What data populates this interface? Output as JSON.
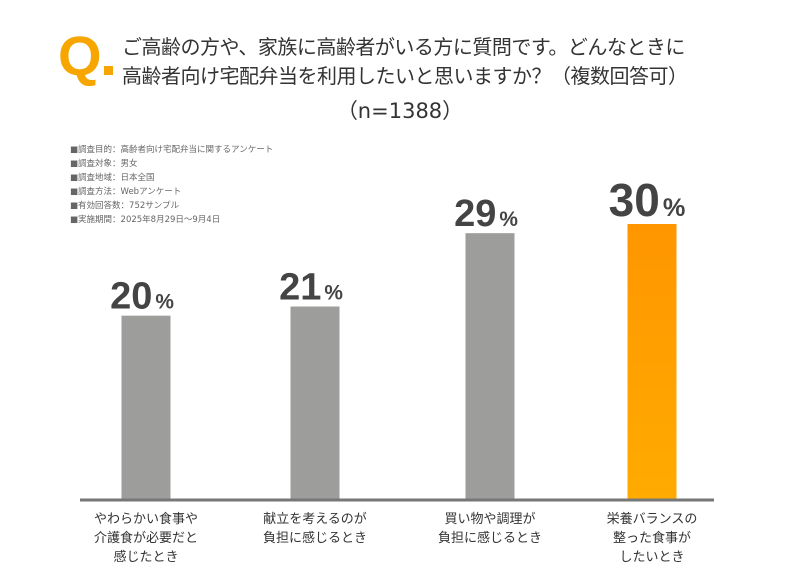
{
  "header": {
    "q_mark": "Q",
    "title_lines": [
      "ご高齢の方や、家族に高齢者がいる方に質問です。どんなときに",
      "高齢者向け宅配弁当を利用したいと思いますか？（複数回答可）"
    ],
    "sample": "（n=1388）"
  },
  "notes": [
    "■調査目的：高齢者向け宅配弁当に関するアンケート",
    "■調査対象：男女",
    "■調査地域：日本全国",
    "■調査方法：Webアンケート",
    "■有効回答数：752サンプル",
    "■実施期間：2025年8月29日〜9月4日"
  ],
  "chart_data": {
    "type": "bar",
    "categories": [
      [
        "やわらかい食事や",
        "介護食が必要だと",
        "感じたとき"
      ],
      [
        "献立を考えるのが",
        "負担に感じるとき"
      ],
      [
        "買い物や調理が",
        "負担に感じるとき"
      ],
      [
        "栄養バランスの",
        "整った食事が",
        "したいとき"
      ]
    ],
    "values": [
      20,
      21,
      29,
      30
    ],
    "unit": "%",
    "ylim": [
      0,
      33
    ],
    "grid": false,
    "colors": {
      "default": "#9d9d9b",
      "highlight": "#ff9900",
      "axis": "#777777",
      "label": "#444444"
    },
    "highlight_index": 3
  }
}
